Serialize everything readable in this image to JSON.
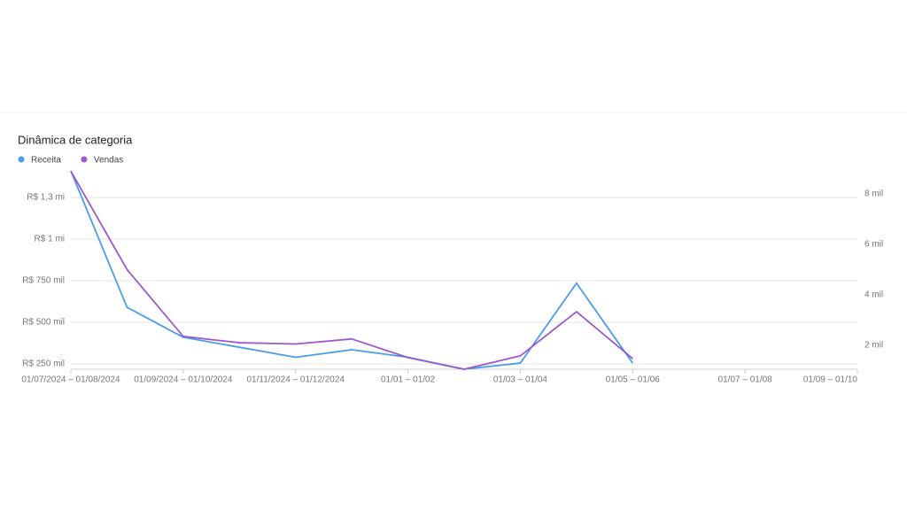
{
  "chart_data": {
    "type": "line",
    "title": "Dinâmica de categoria",
    "categories": [
      "01/07/2024 – 01/08/2024",
      null,
      "01/09/2024 – 01/10/2024",
      null,
      "01/11/2024 – 01/12/2024",
      null,
      "01/01 – 01/02",
      null,
      "01/03 – 01/04",
      null,
      "01/05 – 01/06",
      null,
      "01/07 – 01/08",
      null,
      "01/09 – 01/10"
    ],
    "series": [
      {
        "name": "Receita",
        "color": "#4a9de8",
        "values": [
          1410000,
          590000,
          410000,
          350000,
          290000,
          335000,
          290000,
          218000,
          255000,
          735000,
          255000,
          null,
          null,
          null,
          null
        ]
      },
      {
        "name": "Vendas",
        "color": "#9b59d0",
        "axis": "y2",
        "values": [
          8900,
          5000,
          2350,
          2100,
          2050,
          2250,
          1510,
          1050,
          1580,
          3330,
          1470,
          null,
          null,
          null,
          null
        ]
      }
    ],
    "ylim": [
      218000,
      1410000
    ],
    "yticks": [
      {
        "value": 250000,
        "label": "R$ 250 mil"
      },
      {
        "value": 500000,
        "label": "R$ 500 mil"
      },
      {
        "value": 750000,
        "label": "R$ 750 mil"
      },
      {
        "value": 1000000,
        "label": "R$ 1 mi"
      },
      {
        "value": 1250000,
        "label": "R$ 1,3 mi"
      }
    ],
    "y2lim": [
      1050,
      8910
    ],
    "y2ticks": [
      {
        "value": 2000,
        "label": "2 mil"
      },
      {
        "value": 4000,
        "label": "4 mil"
      },
      {
        "value": 6000,
        "label": "6 mil"
      },
      {
        "value": 8000,
        "label": "8 mil"
      }
    ],
    "grid": true,
    "legend": "top-left"
  }
}
